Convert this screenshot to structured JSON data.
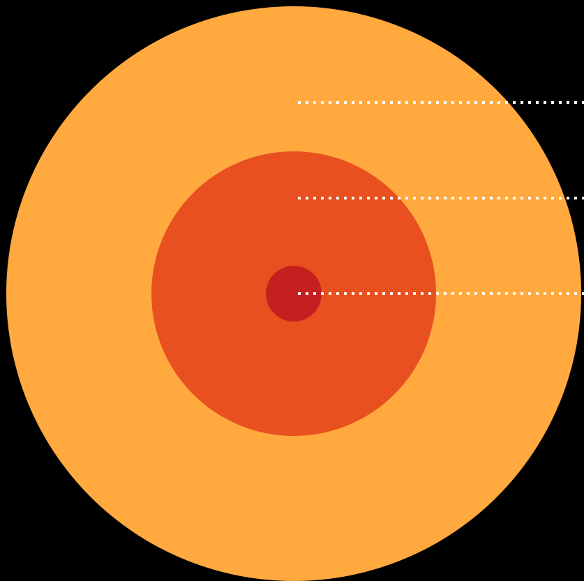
{
  "diagram": {
    "type": "concentric-circles",
    "background_color": "#000000",
    "rings": [
      {
        "name": "outer-ring",
        "color": "#FFA93F"
      },
      {
        "name": "middle-ring",
        "color": "#E8501F"
      },
      {
        "name": "inner-core",
        "color": "#C51F1F"
      }
    ],
    "leader_line_color": "#FFFFFF",
    "leader_line_style": "dotted"
  }
}
